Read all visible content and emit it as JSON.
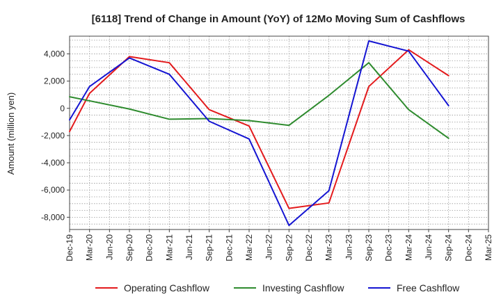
{
  "chart_data": {
    "type": "line",
    "title": "[6118]  Trend of Change in Amount (YoY) of 12Mo Moving Sum of Cashflows",
    "xlabel": "",
    "ylabel": "Amount (million yen)",
    "ylim": [
      -8900,
      5300
    ],
    "y_ticks": [
      4000,
      2000,
      0,
      -2000,
      -4000,
      -6000,
      -8000
    ],
    "y_tick_labels": [
      "4,000",
      "2,000",
      "0",
      "-2,000",
      "-4,000",
      "-6,000",
      "-8,000"
    ],
    "categories": [
      "Dec-19",
      "Mar-20",
      "Jun-20",
      "Sep-20",
      "Dec-20",
      "Mar-21",
      "Jun-21",
      "Sep-21",
      "Dec-21",
      "Mar-22",
      "Jun-22",
      "Sep-22",
      "Dec-22",
      "Mar-23",
      "Jun-23",
      "Sep-23",
      "Dec-23",
      "Mar-24",
      "Jun-24",
      "Sep-24",
      "Dec-24",
      "Mar-25"
    ],
    "grid": true,
    "legend_position": "bottom",
    "series": [
      {
        "name": "Operating Cashflow",
        "color": "#e31a1c",
        "values": [
          -1700,
          1100,
          null,
          3800,
          null,
          3350,
          null,
          -100,
          null,
          -1300,
          null,
          -7350,
          null,
          -6950,
          null,
          1600,
          null,
          4300,
          null,
          2400,
          null,
          null
        ]
      },
      {
        "name": "Investing Cashflow",
        "color": "#2e8b2e",
        "values": [
          850,
          null,
          null,
          -50,
          null,
          -800,
          null,
          -750,
          null,
          -900,
          null,
          -1250,
          null,
          950,
          null,
          3350,
          null,
          -100,
          null,
          -2200,
          null,
          null
        ]
      },
      {
        "name": "Free Cashflow",
        "color": "#1414d2",
        "values": [
          -850,
          1600,
          null,
          3700,
          null,
          2500,
          null,
          -950,
          null,
          -2250,
          null,
          -8600,
          null,
          -6050,
          null,
          4950,
          null,
          4200,
          null,
          200,
          null,
          null
        ]
      }
    ]
  }
}
